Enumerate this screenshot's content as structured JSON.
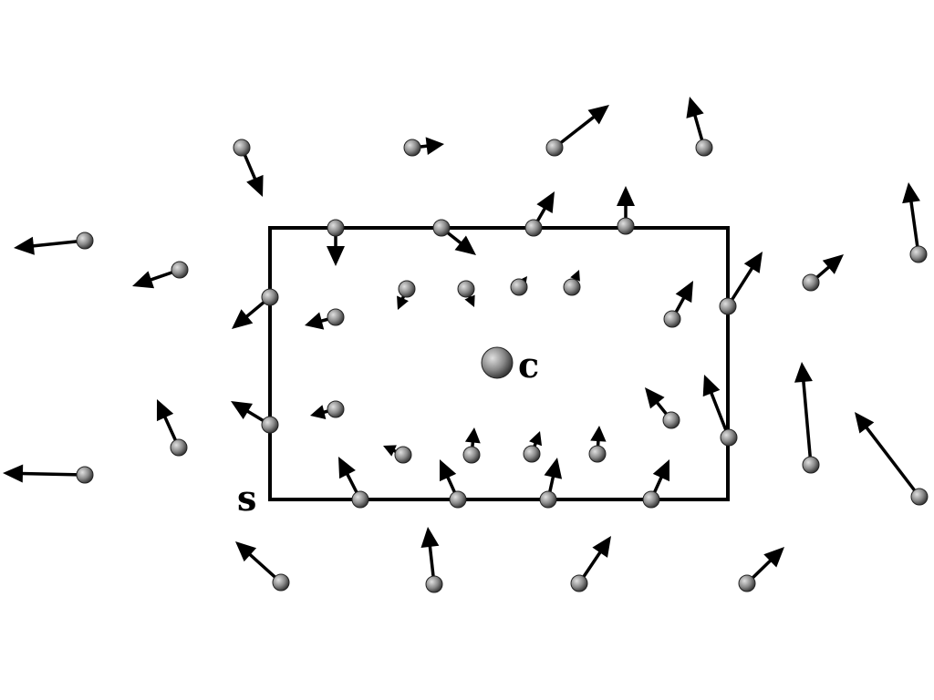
{
  "labels": {
    "center": "c",
    "surface": "s"
  },
  "colors": {
    "ink": "#000000",
    "ball_light": "#d8d8d8",
    "ball_dark": "#3a3a3a",
    "background": "#ffffff"
  }
}
